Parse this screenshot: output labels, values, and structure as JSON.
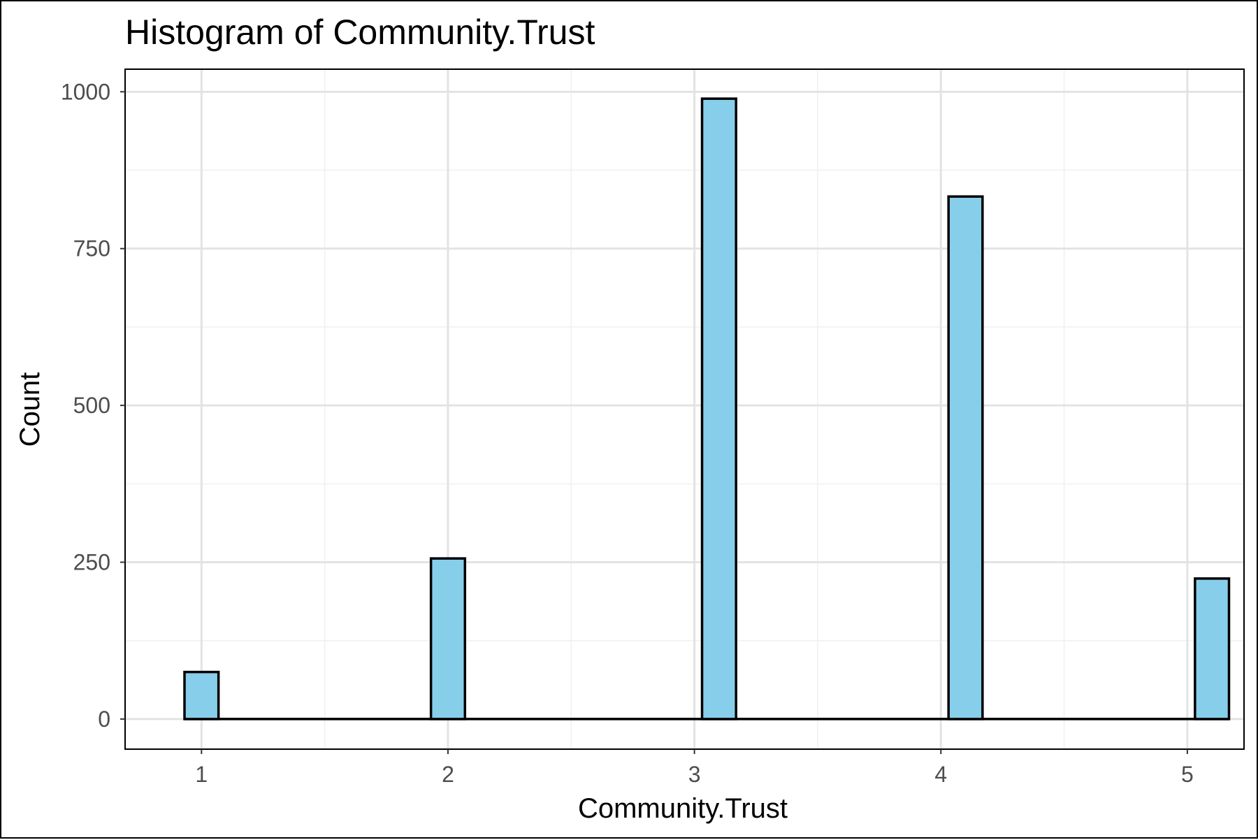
{
  "chart_data": {
    "type": "bar",
    "title": "Histogram of Community.Trust",
    "xlabel": "Community.Trust",
    "ylabel": "Count",
    "x_ticks": [
      "1",
      "2",
      "3",
      "4",
      "5"
    ],
    "y_ticks": [
      "0",
      "250",
      "500",
      "750",
      "1000"
    ],
    "xlim": [
      0.69,
      5.23
    ],
    "ylim": [
      -48,
      1036
    ],
    "grid": true,
    "bin_width": 0.138,
    "series": [
      {
        "x": [
          1,
          2,
          3.1,
          4.1,
          5.1
        ],
        "values": [
          75,
          256,
          989,
          833,
          224
        ]
      }
    ],
    "bar_fill": "#87CEEB",
    "bar_stroke": "#000000"
  }
}
